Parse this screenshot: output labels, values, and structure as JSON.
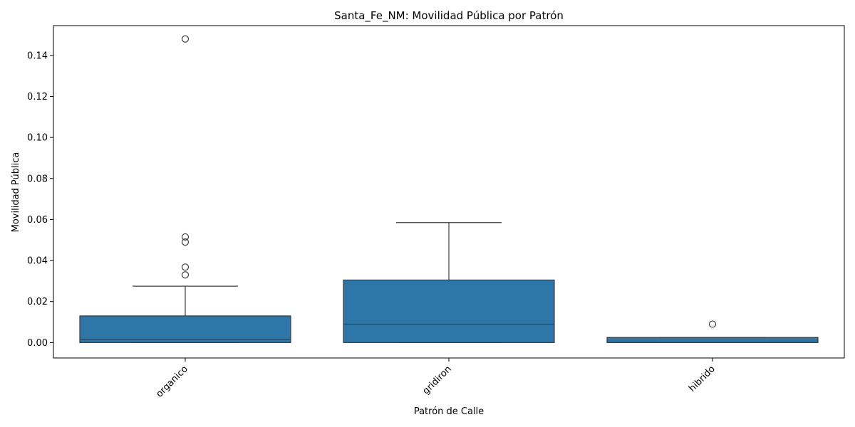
{
  "chart_data": {
    "type": "box",
    "title": "Santa_Fe_NM: Movilidad Pública por Patrón",
    "xlabel": "Patrón de Calle",
    "ylabel": "Movilidad Pública",
    "ylim": [
      -0.0075,
      0.1545
    ],
    "yticks": [
      "0.00",
      "0.02",
      "0.04",
      "0.06",
      "0.08",
      "0.10",
      "0.12",
      "0.14"
    ],
    "grid": false,
    "box_color": "#2e75a8",
    "line_color": "#3c3c3c",
    "categories": [
      "organico",
      "gridiron",
      "hibrido"
    ],
    "boxes": [
      {
        "category": "organico",
        "whisker_low": 0.0,
        "q1": 0.0,
        "median": 0.0015,
        "q3": 0.013,
        "whisker_high": 0.0275,
        "outliers": [
          0.033,
          0.0368,
          0.049,
          0.0515,
          0.148
        ]
      },
      {
        "category": "gridiron",
        "whisker_low": 0.0,
        "q1": 0.0,
        "median": 0.009,
        "q3": 0.0305,
        "whisker_high": 0.0585,
        "outliers": []
      },
      {
        "category": "hibrido",
        "whisker_low": 0.0,
        "q1": 0.0,
        "median": 0.0,
        "q3": 0.0025,
        "whisker_high": 0.0025,
        "outliers": [
          0.009
        ]
      }
    ]
  }
}
